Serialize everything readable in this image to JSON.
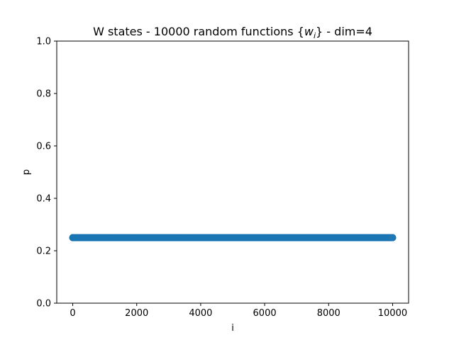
{
  "chart_data": {
    "type": "scatter",
    "title_prefix": "W states - 10000 random functions {",
    "title_var": "w",
    "title_sub": "i",
    "title_suffix": "} - dim=4",
    "xlabel": "i",
    "ylabel": "p",
    "xlim": [
      -500,
      10500
    ],
    "ylim": [
      0.0,
      1.0
    ],
    "xticks": [
      0,
      2000,
      4000,
      6000,
      8000,
      10000
    ],
    "xtick_labels": [
      "0",
      "2000",
      "4000",
      "6000",
      "8000",
      "10000"
    ],
    "yticks": [
      0.0,
      0.2,
      0.4,
      0.6,
      0.8,
      1.0
    ],
    "ytick_labels": [
      "0.0",
      "0.2",
      "0.4",
      "0.6",
      "0.8",
      "1.0"
    ],
    "grid": false,
    "legend": "none",
    "series": [
      {
        "x_start": 0,
        "x_end": 10000,
        "count": 10000,
        "value": 0.25,
        "color": "#1f77b4"
      }
    ]
  }
}
